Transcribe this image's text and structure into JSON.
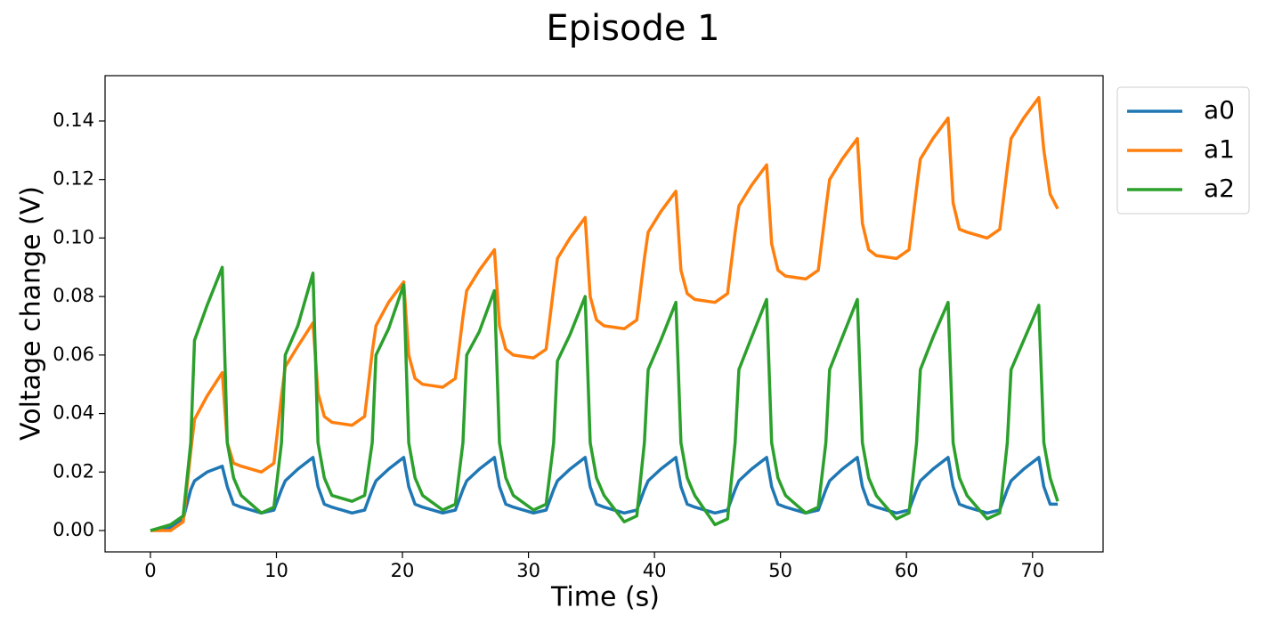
{
  "chart_data": {
    "type": "line",
    "title": "Episode 1",
    "xlabel": "Time (s)",
    "ylabel": "Voltage change (V)",
    "x": [
      0,
      1.6,
      2.6,
      3.2,
      3.5,
      4.5,
      5.7,
      6.1,
      6.6,
      7.2,
      8.8,
      9.8,
      10.4,
      10.7,
      11.7,
      12.9,
      13.3,
      13.8,
      14.4,
      16.0,
      17.0,
      17.6,
      17.9,
      18.9,
      20.1,
      20.5,
      21.0,
      21.6,
      23.2,
      24.2,
      24.8,
      25.1,
      26.1,
      27.3,
      27.7,
      28.2,
      28.8,
      30.4,
      31.4,
      32.0,
      32.3,
      33.3,
      34.5,
      34.9,
      35.4,
      36.0,
      37.6,
      38.6,
      39.2,
      39.5,
      40.5,
      41.7,
      42.1,
      42.6,
      43.2,
      44.8,
      45.8,
      46.4,
      46.7,
      47.7,
      48.9,
      49.3,
      49.8,
      50.4,
      52.0,
      53.0,
      53.6,
      53.9,
      54.9,
      56.1,
      56.5,
      57.0,
      57.6,
      59.2,
      60.2,
      60.8,
      61.1,
      62.1,
      63.3,
      63.7,
      64.2,
      64.8,
      66.4,
      67.4,
      68.0,
      68.3,
      69.3,
      70.5,
      70.9,
      71.4,
      72.0
    ],
    "series": [
      {
        "name": "a0",
        "color": "#1f77b4",
        "values": [
          0,
          0.001,
          0.004,
          0.014,
          0.017,
          0.02,
          0.022,
          0.015,
          0.009,
          0.008,
          0.006,
          0.007,
          0.014,
          0.017,
          0.021,
          0.025,
          0.015,
          0.009,
          0.008,
          0.006,
          0.007,
          0.014,
          0.017,
          0.021,
          0.025,
          0.015,
          0.009,
          0.008,
          0.006,
          0.007,
          0.014,
          0.017,
          0.021,
          0.025,
          0.015,
          0.009,
          0.008,
          0.006,
          0.007,
          0.014,
          0.017,
          0.021,
          0.025,
          0.015,
          0.009,
          0.008,
          0.006,
          0.007,
          0.014,
          0.017,
          0.021,
          0.025,
          0.015,
          0.009,
          0.008,
          0.006,
          0.007,
          0.014,
          0.017,
          0.021,
          0.025,
          0.015,
          0.009,
          0.008,
          0.006,
          0.007,
          0.014,
          0.017,
          0.021,
          0.025,
          0.015,
          0.009,
          0.008,
          0.006,
          0.007,
          0.014,
          0.017,
          0.021,
          0.025,
          0.015,
          0.009,
          0.008,
          0.006,
          0.007,
          0.014,
          0.017,
          0.021,
          0.025,
          0.015,
          0.009,
          0.009
        ]
      },
      {
        "name": "a1",
        "color": "#ff7f0e",
        "values": [
          0,
          0,
          0.003,
          0.027,
          0.038,
          0.046,
          0.054,
          0.03,
          0.023,
          0.022,
          0.02,
          0.023,
          0.046,
          0.056,
          0.063,
          0.071,
          0.047,
          0.039,
          0.037,
          0.036,
          0.039,
          0.061,
          0.07,
          0.078,
          0.085,
          0.06,
          0.052,
          0.05,
          0.049,
          0.052,
          0.073,
          0.082,
          0.089,
          0.096,
          0.07,
          0.062,
          0.06,
          0.059,
          0.062,
          0.083,
          0.093,
          0.1,
          0.107,
          0.08,
          0.072,
          0.07,
          0.069,
          0.072,
          0.093,
          0.102,
          0.109,
          0.116,
          0.089,
          0.081,
          0.079,
          0.078,
          0.081,
          0.102,
          0.111,
          0.118,
          0.125,
          0.098,
          0.089,
          0.087,
          0.086,
          0.089,
          0.11,
          0.12,
          0.127,
          0.134,
          0.105,
          0.096,
          0.094,
          0.093,
          0.096,
          0.117,
          0.127,
          0.134,
          0.141,
          0.112,
          0.103,
          0.102,
          0.1,
          0.103,
          0.124,
          0.134,
          0.141,
          0.148,
          0.13,
          0.115,
          0.11
        ]
      },
      {
        "name": "a2",
        "color": "#2ca02c",
        "values": [
          0,
          0.002,
          0.005,
          0.03,
          0.065,
          0.077,
          0.09,
          0.03,
          0.018,
          0.012,
          0.006,
          0.008,
          0.03,
          0.06,
          0.07,
          0.088,
          0.03,
          0.018,
          0.012,
          0.01,
          0.012,
          0.03,
          0.06,
          0.069,
          0.084,
          0.03,
          0.018,
          0.012,
          0.007,
          0.009,
          0.03,
          0.06,
          0.068,
          0.082,
          0.03,
          0.018,
          0.012,
          0.007,
          0.009,
          0.03,
          0.058,
          0.067,
          0.08,
          0.03,
          0.018,
          0.012,
          0.003,
          0.005,
          0.03,
          0.055,
          0.065,
          0.078,
          0.03,
          0.018,
          0.012,
          0.002,
          0.004,
          0.03,
          0.055,
          0.066,
          0.079,
          0.03,
          0.018,
          0.012,
          0.006,
          0.008,
          0.03,
          0.055,
          0.066,
          0.079,
          0.03,
          0.018,
          0.012,
          0.004,
          0.006,
          0.03,
          0.055,
          0.066,
          0.078,
          0.03,
          0.018,
          0.012,
          0.004,
          0.006,
          0.03,
          0.055,
          0.065,
          0.077,
          0.03,
          0.018,
          0.01
        ]
      }
    ],
    "xlim": [
      -3.6,
      75.6
    ],
    "ylim": [
      -0.0073,
      0.1555
    ],
    "xticks": [
      0,
      10,
      20,
      30,
      40,
      50,
      60,
      70
    ],
    "yticks": [
      {
        "value": 0,
        "label": "0.00"
      },
      {
        "value": 0.02,
        "label": "0.02"
      },
      {
        "value": 0.04,
        "label": "0.04"
      },
      {
        "value": 0.06,
        "label": "0.06"
      },
      {
        "value": 0.08,
        "label": "0.08"
      },
      {
        "value": 0.1,
        "label": "0.10"
      },
      {
        "value": 0.12,
        "label": "0.12"
      },
      {
        "value": 0.14,
        "label": "0.14"
      }
    ],
    "grid": false,
    "legend": "outside upper right"
  }
}
